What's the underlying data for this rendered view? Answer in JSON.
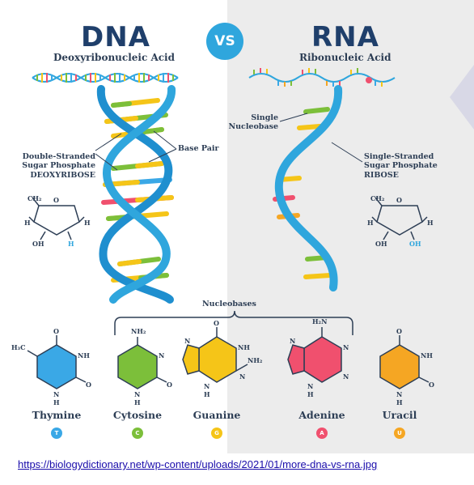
{
  "colors": {
    "title": "#1f3f6b",
    "helix": "#2fa6dd",
    "thymine": "#3aa8e6",
    "cytosine": "#7cbf3a",
    "guanine": "#f5c518",
    "adenine": "#f0506e",
    "uracil": "#f5a623",
    "vs_badge": "#2fa6dd"
  },
  "header": {
    "dna_title": "DNA",
    "dna_subtitle": "Deoxyribonucleic Acid",
    "vs": "VS",
    "rna_title": "RNA",
    "rna_subtitle": "Ribonucleic Acid"
  },
  "dna_labels": {
    "strand": [
      "Double-Stranded",
      "Sugar Phosphate",
      "DEOXYRIBOSE"
    ],
    "base_pair": "Base Pair"
  },
  "rna_labels": {
    "single_base": [
      "Single",
      "Nucleobase"
    ],
    "strand": [
      "Single-Stranded",
      "Sugar Phosphate",
      "RIBOSE"
    ]
  },
  "sugar": {
    "ch2": "CH₂",
    "o": "O",
    "h": "H",
    "oh": "OH"
  },
  "nucleobases_label": "Nucleobases",
  "bases": [
    {
      "name": "Thymine",
      "letter": "T",
      "color": "#3aa8e6"
    },
    {
      "name": "Cytosine",
      "letter": "C",
      "color": "#7cbf3a"
    },
    {
      "name": "Guanine",
      "letter": "G",
      "color": "#f5c518"
    },
    {
      "name": "Adenine",
      "letter": "A",
      "color": "#f0506e"
    },
    {
      "name": "Uracil",
      "letter": "U",
      "color": "#f5a623"
    }
  ],
  "structure_labels": {
    "h3c": "H₃C",
    "nh2": "NH₂",
    "h2n": "H₂N",
    "nh": "NH",
    "n": "N",
    "h": "H",
    "o": "O"
  },
  "url": "https://biologydictionary.net/wp-content/uploads/2021/01/more-dna-vs-rna.jpg"
}
